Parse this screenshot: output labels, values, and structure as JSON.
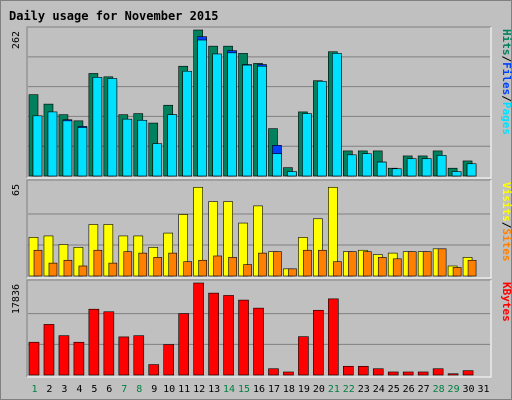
{
  "chart_data": {
    "type": "bar",
    "title": "Daily usage for November 2015",
    "colors": {
      "hits": "#00805c",
      "files": "#0040ff",
      "pages": "#00e0ff",
      "visits": "#ffff00",
      "sites": "#ff8000",
      "kbytes": "#ff0000",
      "background": "#c0c0c0",
      "title": "#0000ff",
      "weekday_label": "#008040",
      "weekend_label": "#000000"
    },
    "categories": [
      "1",
      "2",
      "3",
      "4",
      "5",
      "6",
      "7",
      "8",
      "9",
      "10",
      "11",
      "12",
      "13",
      "14",
      "15",
      "16",
      "17",
      "18",
      "19",
      "20",
      "21",
      "22",
      "23",
      "24",
      "25",
      "26",
      "27",
      "28",
      "29",
      "30",
      "31"
    ],
    "weekend_days": [
      1,
      7,
      8,
      14,
      15,
      21,
      22,
      28,
      29
    ],
    "panels": [
      {
        "id": "hits",
        "max_label": "262",
        "ylim": [
          0,
          262
        ],
        "legend": [
          {
            "text": "Hits",
            "color": "#00805c"
          },
          {
            "text": "/",
            "color": "#000000"
          },
          {
            "text": "Files",
            "color": "#0040ff"
          },
          {
            "text": "/",
            "color": "#000000"
          },
          {
            "text": "Pages",
            "color": "#00e0ff"
          }
        ],
        "series": [
          {
            "name": "Hits",
            "values": [
              146,
              129,
              110,
              99,
              184,
              178,
              110,
              112,
              95,
              127,
              197,
              262,
              233,
              233,
              220,
              202,
              85,
              15,
              115,
              171,
              223,
              45,
              45,
              45,
              14,
              36,
              36,
              45,
              14,
              27,
              0
            ]
          },
          {
            "name": "Files",
            "values": [
              106,
              111,
              101,
              89,
              175,
              170,
              100,
              98,
              55,
              110,
              185,
              250,
              215,
              225,
              200,
              200,
              55,
              7,
              110,
              160,
              215,
              32,
              31,
              25,
              13,
              28,
              31,
              36,
              6,
              20,
              0
            ]
          },
          {
            "name": "Pages",
            "values": [
              108,
              115,
              99,
              87,
              177,
              175,
              102,
              100,
              58,
              110,
              188,
              244,
              219,
              221,
              199,
              197,
              40,
              8,
              112,
              170,
              220,
              38,
              40,
              25,
              13,
              31,
              31,
              37,
              8,
              22,
              0
            ]
          }
        ]
      },
      {
        "id": "visits",
        "max_label": "65",
        "ylim": [
          0,
          65
        ],
        "legend": [
          {
            "text": "Visits",
            "color": "#ffff00"
          },
          {
            "text": "/",
            "color": "#000000"
          },
          {
            "text": "Sites",
            "color": "#ff8000"
          }
        ],
        "series": [
          {
            "name": "Visits",
            "values": [
              27,
              28,
              22,
              20,
              36,
              36,
              28,
              28,
              20,
              30,
              43,
              62,
              52,
              52,
              37,
              49,
              17,
              5,
              27,
              40,
              62,
              17,
              18,
              15,
              16,
              17,
              17,
              19,
              7,
              13,
              0
            ]
          },
          {
            "name": "Sites",
            "values": [
              18,
              9,
              11,
              7,
              18,
              9,
              17,
              16,
              13,
              16,
              10,
              11,
              14,
              13,
              8,
              16,
              17,
              5,
              18,
              18,
              10,
              17,
              17,
              13,
              12,
              17,
              17,
              19,
              6,
              11,
              0
            ]
          }
        ]
      },
      {
        "id": "kbytes",
        "max_label": "17836",
        "ylim": [
          0,
          17836
        ],
        "legend": [
          {
            "text": "KBytes",
            "color": "#ff0000"
          }
        ],
        "series": [
          {
            "name": "KBytes",
            "values": [
              6356,
              9808,
              7625,
              6356,
              12757,
              12264,
              7385,
              7625,
              2023,
              5905,
              11905,
              17836,
              15875,
              15420,
              14523,
              12962,
              1214,
              587,
              7433,
              12551,
              14760,
              1690,
              1690,
              1214,
              587,
              587,
              587,
              1214,
              241,
              841,
              0
            ]
          }
        ]
      }
    ]
  }
}
